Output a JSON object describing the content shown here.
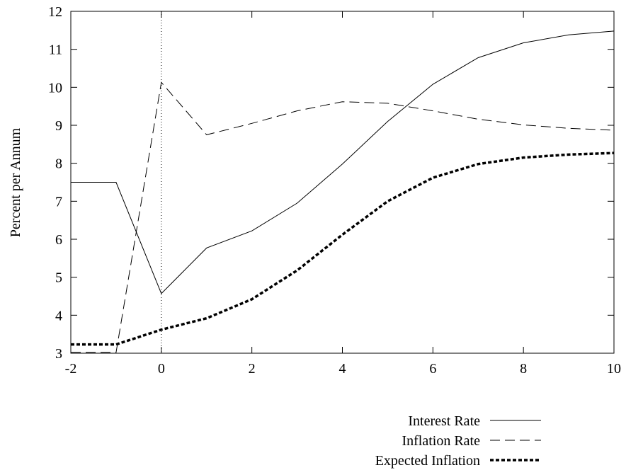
{
  "chart_data": {
    "type": "line",
    "title": "",
    "xlabel": "",
    "ylabel": "Percent per Annum",
    "xlim": [
      -2,
      10
    ],
    "ylim": [
      3,
      12
    ],
    "xticks": [
      -2,
      0,
      2,
      4,
      6,
      8,
      10
    ],
    "yticks": [
      3,
      4,
      5,
      6,
      7,
      8,
      9,
      10,
      11,
      12
    ],
    "xtick_labels": [
      "-2",
      "0",
      "2",
      "4",
      "6",
      "8",
      "10"
    ],
    "ytick_labels": [
      "3",
      "4",
      "5",
      "6",
      "7",
      "8",
      "9",
      "10",
      "11",
      "12"
    ],
    "vertical_reference_line": 0,
    "grid": false,
    "legend_position": "bottom-right (below plot)",
    "series": [
      {
        "name": "Interest Rate",
        "style": "solid-thin",
        "x": [
          -2,
          -1,
          0,
          1,
          2,
          3,
          4,
          5,
          6,
          7,
          8,
          9,
          10
        ],
        "y": [
          7.5,
          7.5,
          4.57,
          5.77,
          6.22,
          6.95,
          7.98,
          9.1,
          10.08,
          10.78,
          11.17,
          11.38,
          11.48
        ]
      },
      {
        "name": "Inflation Rate",
        "style": "dashed-thin",
        "x": [
          -2,
          -1,
          0,
          1,
          2,
          3,
          4,
          5,
          6,
          7,
          8,
          9,
          10
        ],
        "y": [
          3.02,
          3.02,
          10.13,
          8.75,
          9.05,
          9.38,
          9.62,
          9.58,
          9.38,
          9.16,
          9.01,
          8.92,
          8.87
        ]
      },
      {
        "name": "Expected Inflation",
        "style": "dotted-thick",
        "x": [
          -2,
          -1,
          0,
          1,
          2,
          3,
          4,
          5,
          6,
          7,
          8,
          9,
          10
        ],
        "y": [
          3.23,
          3.23,
          3.62,
          3.92,
          4.42,
          5.18,
          6.12,
          7.0,
          7.62,
          7.98,
          8.15,
          8.23,
          8.27
        ]
      }
    ]
  }
}
